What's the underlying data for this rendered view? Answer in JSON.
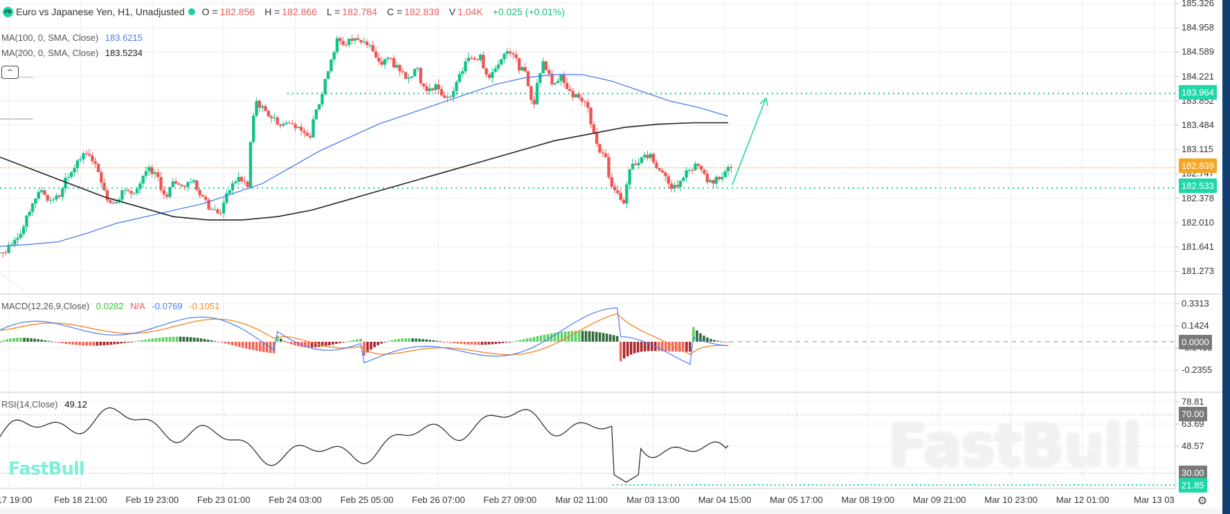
{
  "header": {
    "logo": "FB",
    "title": "Euro vs Japanese Yen, H1, Unadjusted",
    "ohlc": [
      {
        "label": "O =",
        "value": "182.856"
      },
      {
        "label": "H =",
        "value": "182.866"
      },
      {
        "label": "L =",
        "value": "182.784"
      },
      {
        "label": "C =",
        "value": "182.839"
      },
      {
        "label": "V",
        "value": "1.04K"
      }
    ],
    "change": "+0.025 (+0.01%)"
  },
  "indicators": {
    "ma100": {
      "label": "MA(100, 0, SMA, Close)",
      "value": "183.6215",
      "color": "#4a7cf0"
    },
    "ma200": {
      "label": "MA(200, 0, SMA, Close)",
      "value": "183.5234",
      "color": "#222222"
    },
    "collapse_icon": "^",
    "macd": {
      "label": "MACD(12,26,9,Close)",
      "hist": "0.0282",
      "na": "N/A",
      "macd": "-0.0769",
      "signal": "-0.1051"
    },
    "rsi": {
      "label": "RSI(14,Close)",
      "value": "49.12"
    }
  },
  "colors": {
    "up": "#12c28a",
    "down": "#f05555",
    "ma100": "#4a7cf0",
    "ma200": "#222222",
    "macd": "#4a7cf0",
    "signal": "#f58a2a",
    "hist_up_strong": "#5fd166",
    "hist_up_weak": "#2f6b3a",
    "hist_down_strong": "#f0655a",
    "hist_down_weak": "#a8282c",
    "level": "#1fd8a8",
    "last_price": "#f5a623",
    "gray_tag": "#7a7a7a"
  },
  "price_axis": {
    "ticks": [
      "185.326",
      "184.958",
      "184.589",
      "184.221",
      "183.852",
      "183.484",
      "183.115",
      "182.747",
      "182.378",
      "182.010",
      "181.641",
      "181.273"
    ],
    "tags": [
      {
        "value": "183.964",
        "type": "level"
      },
      {
        "value": "182.839",
        "type": "last"
      },
      {
        "value": "182.533",
        "type": "level"
      }
    ]
  },
  "macd_axis": {
    "ticks": [
      "0.3313",
      "0.1424",
      "-0.0466",
      "-0.2355"
    ],
    "tag": "0.0000"
  },
  "rsi_axis": {
    "ticks": [
      "78.81",
      "63.69",
      "48.57"
    ],
    "tags": [
      {
        "value": "70.00",
        "type": "gray"
      },
      {
        "value": "30.00",
        "type": "gray"
      },
      {
        "value": "21.85",
        "type": "level"
      }
    ]
  },
  "time_axis": [
    "17 19:00",
    "Feb 18 21:00",
    "Feb 19 23:00",
    "Feb 23 01:00",
    "Feb 24 03:00",
    "Feb 25 05:00",
    "Feb 26 07:00",
    "Feb 27 09:00",
    "Mar 02 11:00",
    "Mar 03 13:00",
    "Mar 04 15:00",
    "Mar 05 17:00",
    "Mar 08 19:00",
    "Mar 09 21:00",
    "Mar 10 23:00",
    "Mar 12 01:00",
    "Mar 13 03"
  ],
  "watermark": "FastBull",
  "logo_mark": "FastBull",
  "settings_icon": "⚙",
  "chart_data": {
    "type": "candlestick",
    "title": "Euro vs Japanese Yen, H1, Unadjusted",
    "ylim": [
      181.2,
      185.33
    ],
    "close_samples": [
      181.55,
      181.75,
      181.95,
      182.3,
      182.5,
      182.35,
      182.4,
      182.7,
      182.95,
      183.05,
      182.9,
      182.5,
      182.3,
      182.5,
      182.45,
      182.6,
      182.85,
      182.7,
      182.4,
      182.6,
      182.55,
      182.65,
      182.4,
      182.2,
      182.15,
      182.5,
      182.7,
      182.55,
      183.85,
      183.7,
      183.6,
      183.5,
      183.5,
      183.4,
      183.3,
      183.8,
      184.3,
      184.8,
      184.7,
      184.8,
      184.75,
      184.6,
      184.4,
      184.5,
      184.3,
      184.2,
      184.35,
      184.0,
      184.1,
      183.9,
      184.0,
      184.3,
      184.5,
      184.55,
      184.2,
      184.4,
      184.6,
      184.5,
      184.3,
      183.8,
      184.45,
      184.1,
      184.25,
      184.0,
      183.9,
      183.75,
      183.2,
      183.0,
      182.5,
      182.3,
      182.9,
      183.0,
      183.05,
      182.8,
      182.6,
      182.55,
      182.8,
      182.9,
      182.75,
      182.6,
      182.7,
      182.84
    ],
    "ma100_samples": [
      181.65,
      181.68,
      181.72,
      181.85,
      182.0,
      182.1,
      182.2,
      182.3,
      182.45,
      182.6,
      182.85,
      183.1,
      183.3,
      183.5,
      183.65,
      183.8,
      183.95,
      184.1,
      184.2,
      184.25,
      184.25,
      184.15,
      184.0,
      183.85,
      183.75,
      183.62
    ],
    "ma200_samples": [
      183.0,
      182.8,
      182.6,
      182.4,
      182.25,
      182.1,
      182.05,
      182.05,
      182.1,
      182.2,
      182.35,
      182.5,
      182.65,
      182.8,
      182.95,
      183.1,
      183.25,
      183.35,
      183.45,
      183.5,
      183.52,
      183.52
    ],
    "levels": [
      183.964,
      182.533
    ],
    "last_price": 182.839,
    "macd_ylim": [
      -0.33,
      0.42
    ],
    "rsi_ylim": [
      20,
      82
    ],
    "rsi_levels": [
      70,
      30
    ]
  }
}
